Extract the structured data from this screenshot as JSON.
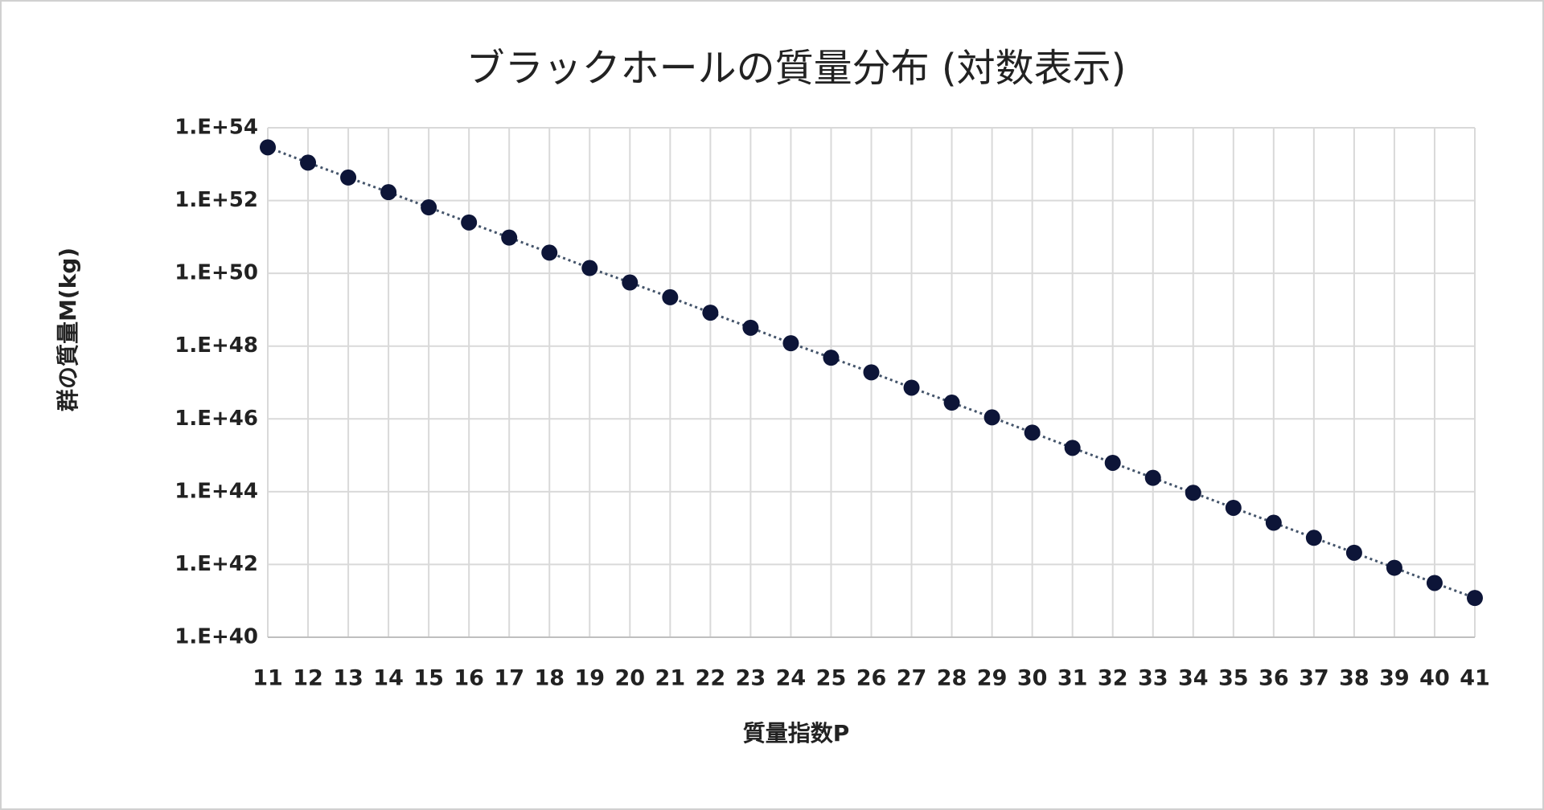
{
  "chart_data": {
    "type": "line",
    "title": "ブラックホールの質量分布 (対数表示)",
    "x_label": "質量指数P",
    "y_label": "群の質量M(kg)",
    "x": [
      11,
      12,
      13,
      14,
      15,
      16,
      17,
      18,
      19,
      20,
      21,
      22,
      23,
      24,
      25,
      26,
      27,
      28,
      29,
      30,
      31,
      32,
      33,
      34,
      35,
      36,
      37,
      38,
      39,
      40,
      41
    ],
    "series": [
      {
        "name": "群の質量M(kg)",
        "color": "#0d1538",
        "values": [
          2.9e+53,
          1.1e+53,
          4.3e+52,
          1.7e+52,
          6.5e+51,
          2.5e+51,
          9.6e+50,
          3.7e+50,
          1.4e+50,
          5.6e+49,
          2.2e+49,
          8.3e+48,
          3.2e+48,
          1.2e+48,
          4.8e+47,
          1.9e+47,
          7.2e+46,
          2.8e+46,
          1.1e+46,
          4.2e+45,
          1.6e+45,
          6.2e+44,
          2.4e+44,
          9.3e+43,
          3.6e+43,
          1.4e+43,
          5.4e+42,
          2.1e+42,
          8.1e+41,
          3.1e+41,
          1.2e+41
        ]
      }
    ],
    "xlim": [
      11,
      41
    ],
    "xticks": [
      11,
      12,
      13,
      14,
      15,
      16,
      17,
      18,
      19,
      20,
      21,
      22,
      23,
      24,
      25,
      26,
      27,
      28,
      29,
      30,
      31,
      32,
      33,
      34,
      35,
      36,
      37,
      38,
      39,
      40,
      41
    ],
    "ylim": [
      1e+40,
      1e+54
    ],
    "yticks": [
      {
        "value": 1e+40,
        "label": "1.E+40"
      },
      {
        "value": 1e+42,
        "label": "1.E+42"
      },
      {
        "value": 1e+44,
        "label": "1.E+44"
      },
      {
        "value": 1e+46,
        "label": "1.E+46"
      },
      {
        "value": 1e+48,
        "label": "1.E+48"
      },
      {
        "value": 1e+50,
        "label": "1.E+50"
      },
      {
        "value": 1e+52,
        "label": "1.E+52"
      },
      {
        "value": 1e+54,
        "label": "1.E+54"
      }
    ],
    "log_scale": true,
    "grid": true,
    "line_style": "dotted"
  }
}
